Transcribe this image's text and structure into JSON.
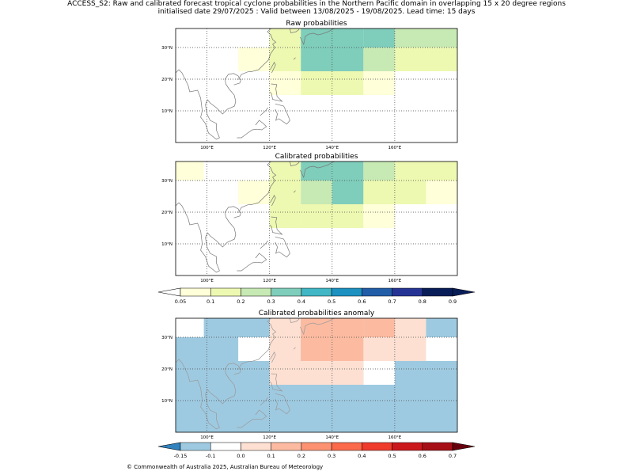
{
  "header": {
    "title_line1": "ACCESS_S2: Raw and calibrated forecast tropical cyclone probabilities in the Northern Pacific domain in overlapping 15 x 20 degree regions",
    "title_line2": "initialised date 29/07/2025 :  Valid between 13/08/2025 - 19/08/2025. Lead time: 15 days"
  },
  "footer": {
    "text": "© Commonwealth of Australia 2025, Australian Bureau of Meteorology"
  },
  "colors": {
    "prob": [
      "#ffffd9",
      "#edf8b1",
      "#c7e9b4",
      "#7fcdbb",
      "#41b6c4",
      "#1d91c0",
      "#225ea8",
      "#253494",
      "#081d58"
    ],
    "anom": [
      "#3182bd",
      "#9ecae1",
      "#ffffff",
      "#fee0d2",
      "#fcbba1",
      "#fc9272",
      "#fb6a4a",
      "#ef3b2c",
      "#cb181d",
      "#a50f15"
    ],
    "coast": "#777777",
    "coast_anom": "#999999"
  },
  "chart_data": [
    {
      "type": "heatmap",
      "title": "Raw probabilities",
      "x_ticks": [
        "100°E",
        "120°E",
        "140°E",
        "160°E"
      ],
      "y_ticks": [
        "10°N",
        "20°N",
        "30°N"
      ],
      "xlim": [
        90,
        180
      ],
      "ylim": [
        0,
        36
      ],
      "cells": [
        {
          "lon": [
            110,
            120
          ],
          "lat": [
            22.5,
            30
          ],
          "value": 0.07
        },
        {
          "lon": [
            120,
            130
          ],
          "lat": [
            22.5,
            30
          ],
          "value": 0.15
        },
        {
          "lon": [
            120,
            130
          ],
          "lat": [
            30,
            36
          ],
          "value": 0.15
        },
        {
          "lon": [
            130,
            150
          ],
          "lat": [
            22.5,
            36
          ],
          "value": 0.35
        },
        {
          "lon": [
            150,
            160
          ],
          "lat": [
            30,
            36
          ],
          "value": 0.35
        },
        {
          "lon": [
            150,
            160
          ],
          "lat": [
            22.5,
            30
          ],
          "value": 0.25
        },
        {
          "lon": [
            160,
            180
          ],
          "lat": [
            30,
            36
          ],
          "value": 0.25
        },
        {
          "lon": [
            160,
            180
          ],
          "lat": [
            22.5,
            30
          ],
          "value": 0.15
        },
        {
          "lon": [
            120,
            130
          ],
          "lat": [
            15,
            22.5
          ],
          "value": 0.07
        },
        {
          "lon": [
            130,
            150
          ],
          "lat": [
            15,
            22.5
          ],
          "value": 0.15
        },
        {
          "lon": [
            150,
            160
          ],
          "lat": [
            15,
            22.5
          ],
          "value": 0.07
        }
      ]
    },
    {
      "type": "heatmap",
      "title": "Calibrated probabilities",
      "x_ticks": [
        "100°E",
        "120°E",
        "140°E",
        "160°E"
      ],
      "y_ticks": [
        "10°N",
        "20°N",
        "30°N"
      ],
      "xlim": [
        90,
        180
      ],
      "ylim": [
        0,
        36
      ],
      "cells": [
        {
          "lon": [
            90,
            99
          ],
          "lat": [
            30,
            36
          ],
          "value": 0.07
        },
        {
          "lon": [
            110,
            120
          ],
          "lat": [
            22.5,
            30
          ],
          "value": 0.07
        },
        {
          "lon": [
            120,
            130
          ],
          "lat": [
            15,
            36
          ],
          "value": 0.15
        },
        {
          "lon": [
            130,
            140
          ],
          "lat": [
            30,
            36
          ],
          "value": 0.35
        },
        {
          "lon": [
            130,
            140
          ],
          "lat": [
            22.5,
            30
          ],
          "value": 0.25
        },
        {
          "lon": [
            140,
            150
          ],
          "lat": [
            22.5,
            36
          ],
          "value": 0.35
        },
        {
          "lon": [
            150,
            160
          ],
          "lat": [
            30,
            36
          ],
          "value": 0.25
        },
        {
          "lon": [
            160,
            180
          ],
          "lat": [
            30,
            36
          ],
          "value": 0.15
        },
        {
          "lon": [
            150,
            170
          ],
          "lat": [
            22.5,
            30
          ],
          "value": 0.15
        },
        {
          "lon": [
            170,
            180
          ],
          "lat": [
            22.5,
            30
          ],
          "value": 0.07
        },
        {
          "lon": [
            130,
            150
          ],
          "lat": [
            15,
            22.5
          ],
          "value": 0.15
        },
        {
          "lon": [
            150,
            160
          ],
          "lat": [
            15,
            22.5
          ],
          "value": 0.07
        }
      ]
    },
    {
      "type": "heatmap",
      "title": "Calibrated probabilities anomaly",
      "x_ticks": [
        "100°E",
        "120°E",
        "140°E",
        "160°E"
      ],
      "y_ticks": [
        "10°N",
        "20°N",
        "30°N"
      ],
      "xlim": [
        90,
        180
      ],
      "ylim": [
        0,
        36
      ],
      "background_value": -0.15,
      "cells": [
        {
          "lon": [
            90,
            99
          ],
          "lat": [
            30,
            36
          ],
          "value": -0.05
        },
        {
          "lon": [
            110,
            120
          ],
          "lat": [
            22.5,
            30
          ],
          "value": -0.05
        },
        {
          "lon": [
            120,
            130
          ],
          "lat": [
            22.5,
            36
          ],
          "value": 0.05
        },
        {
          "lon": [
            120,
            140
          ],
          "lat": [
            15,
            22.5
          ],
          "value": 0.05
        },
        {
          "lon": [
            130,
            140
          ],
          "lat": [
            22.5,
            36
          ],
          "value": 0.15
        },
        {
          "lon": [
            140,
            150
          ],
          "lat": [
            15,
            36
          ],
          "value": 0.05
        },
        {
          "lon": [
            140,
            150
          ],
          "lat": [
            22.5,
            36
          ],
          "value": 0.15
        },
        {
          "lon": [
            150,
            160
          ],
          "lat": [
            30,
            36
          ],
          "value": 0.15
        },
        {
          "lon": [
            150,
            160
          ],
          "lat": [
            22.5,
            30
          ],
          "value": 0.05
        },
        {
          "lon": [
            160,
            170
          ],
          "lat": [
            22.5,
            36
          ],
          "value": 0.05
        },
        {
          "lon": [
            150,
            160
          ],
          "lat": [
            15,
            22.5
          ],
          "value": -0.05
        },
        {
          "lon": [
            170,
            180
          ],
          "lat": [
            22.5,
            30
          ],
          "value": -0.05
        }
      ]
    }
  ],
  "colorbars": [
    {
      "name": "probability",
      "ticks": [
        "0.05",
        "0.1",
        "0.2",
        "0.3",
        "0.4",
        "0.5",
        "0.6",
        "0.7",
        "0.8",
        "0.9"
      ]
    },
    {
      "name": "anomaly",
      "ticks": [
        "-0.15",
        "-0.1",
        "0.0",
        "0.1",
        "0.2",
        "0.3",
        "0.4",
        "0.5",
        "0.6",
        "0.7"
      ]
    }
  ]
}
